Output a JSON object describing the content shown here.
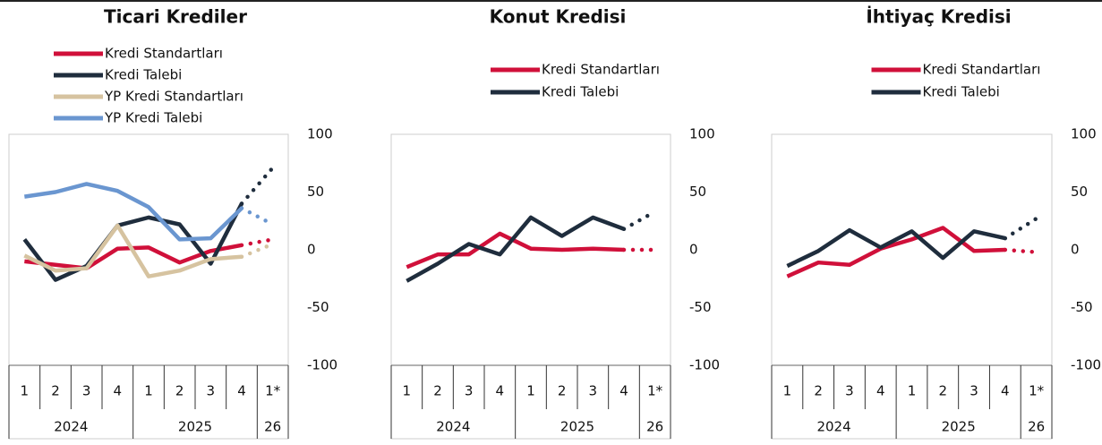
{
  "chart_data": [
    {
      "type": "line",
      "title": "Ticari Krediler",
      "legend": "top-left",
      "categories": [
        "1",
        "2",
        "3",
        "4",
        "1",
        "2",
        "3",
        "4",
        "1*"
      ],
      "groups": [
        "2024",
        "2025",
        "26"
      ],
      "group_sizes": [
        4,
        4,
        1
      ],
      "last_segment_style": "dotted",
      "ylim": [
        -100,
        100
      ],
      "yticks": [
        100,
        50,
        0,
        -50,
        -100
      ],
      "series": [
        {
          "name": "Kredi Standartları",
          "color": "#d0103a",
          "values": [
            -10,
            -13,
            -16,
            1,
            2,
            -11,
            -1,
            4,
            9
          ]
        },
        {
          "name": "Kredi Talebi",
          "color": "#1f2d3d",
          "values": [
            9,
            -26,
            -14,
            21,
            28,
            22,
            -12,
            40,
            71
          ]
        },
        {
          "name": "YP Kredi Standartları",
          "color": "#d6c3a0",
          "values": [
            -5,
            -18,
            -16,
            21,
            -23,
            -18,
            -8,
            -6,
            5
          ]
        },
        {
          "name": "YP Kredi Talebi",
          "color": "#6a96d0",
          "values": [
            46,
            50,
            57,
            51,
            37,
            9,
            10,
            36,
            22
          ]
        }
      ]
    },
    {
      "type": "line",
      "title": "Konut Kredisi",
      "legend": "top",
      "categories": [
        "1",
        "2",
        "3",
        "4",
        "1",
        "2",
        "3",
        "4",
        "1*"
      ],
      "groups": [
        "2024",
        "2025",
        "26"
      ],
      "group_sizes": [
        4,
        4,
        1
      ],
      "last_segment_style": "dotted",
      "ylim": [
        -100,
        100
      ],
      "yticks": [
        100,
        50,
        0,
        -50,
        -100
      ],
      "series": [
        {
          "name": "Kredi Standartları",
          "color": "#d0103a",
          "values": [
            -15,
            -4,
            -4,
            14,
            1,
            0,
            1,
            0,
            0
          ]
        },
        {
          "name": "Kredi Talebi",
          "color": "#1f2d3d",
          "values": [
            -27,
            -12,
            5,
            -4,
            28,
            12,
            28,
            18,
            33
          ]
        }
      ]
    },
    {
      "type": "line",
      "title": "İhtiyaç Kredisi",
      "legend": "top",
      "categories": [
        "1",
        "2",
        "3",
        "4",
        "1",
        "2",
        "3",
        "4",
        "1*"
      ],
      "groups": [
        "2024",
        "2025",
        "26"
      ],
      "group_sizes": [
        4,
        4,
        1
      ],
      "last_segment_style": "dotted",
      "ylim": [
        -100,
        100
      ],
      "yticks": [
        100,
        50,
        0,
        -50,
        -100
      ],
      "series": [
        {
          "name": "Kredi Standartları",
          "color": "#d0103a",
          "values": [
            -23,
            -11,
            -13,
            1,
            9,
            19,
            -1,
            0,
            -2
          ]
        },
        {
          "name": "Kredi Talebi",
          "color": "#1f2d3d",
          "values": [
            -14,
            -1,
            17,
            2,
            16,
            -7,
            16,
            10,
            27
          ]
        }
      ]
    }
  ]
}
